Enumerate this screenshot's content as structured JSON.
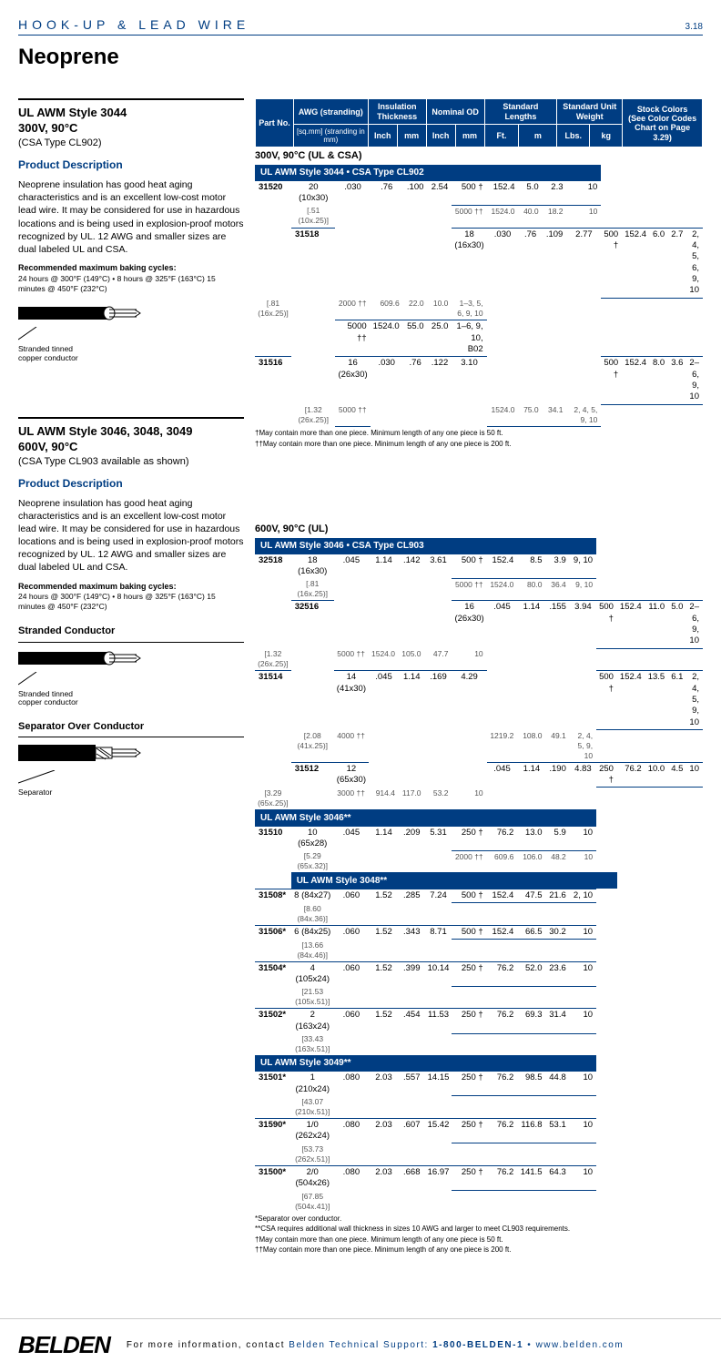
{
  "header": {
    "category": "HOOK-UP & LEAD WIRE",
    "page": "3.18"
  },
  "title": "Neoprene",
  "sections": [
    {
      "style_title": "UL AWM Style 3044",
      "style_sub1": "300V, 90°C",
      "style_sub2": "(CSA Type CL902)",
      "pd_head": "Product Description",
      "pd_text": "Neoprene insulation has good heat aging characteristics and is an excellent low-cost motor lead wire. It may be considered for use in hazardous locations and is being used in explosion-proof motors recognized by UL. 12 AWG and smaller sizes are dual labeled UL and CSA.",
      "baking_h": "Recommended maximum baking cycles:",
      "baking_t": "24 hours @ 300°F (149°C) • 8 hours @ 325°F (163°C) 15 minutes @ 450°F (232°C)",
      "fig_label": "Stranded tinned\ncopper conductor"
    },
    {
      "style_title": "UL AWM Style 3046, 3048, 3049",
      "style_sub1": "600V, 90°C",
      "style_sub2": "(CSA Type CL903 available as shown)",
      "pd_head": "Product Description",
      "pd_text": "Neoprene insulation has good heat aging characteristics and is an excellent low-cost motor lead wire. It may be considered for use in hazardous locations and is being used in explosion-proof motors recognized by UL. 12 AWG and smaller sizes are dual labeled UL and CSA.",
      "baking_h": "Recommended maximum baking cycles:",
      "baking_t": "24 hours @ 300°F (149°C) • 8 hours @ 325°F (163°C) 15 minutes @ 450°F (232°C)",
      "fig1_h": "Stranded Conductor",
      "fig1_label": "Stranded tinned\ncopper conductor",
      "fig2_h": "Separator Over Conductor",
      "fig2_label": "Separator"
    }
  ],
  "table_header": {
    "part": "Part No.",
    "awg": "AWG (stranding)",
    "awg_sub": "[sq.mm] (stranding in mm)",
    "ins": "Insulation Thickness",
    "nom": "Nominal OD",
    "stdlen": "Standard Lengths",
    "stdwt": "Standard Unit Weight",
    "stock": "Stock Colors",
    "stock_sub": "(See Color Codes Chart on Page 3.29)",
    "inch": "Inch",
    "mm": "mm",
    "ft": "Ft.",
    "m": "m",
    "lbs": "Lbs.",
    "kg": "kg"
  },
  "tables": {
    "t1_title": "300V, 90°C (UL & CSA)",
    "t1_section": "UL AWM Style 3044 • CSA Type CL902",
    "t1_rows": [
      {
        "part": "31520",
        "awg": "20 (10x30)",
        "awgs": "[.51 (10x.25)]",
        "in": ".030",
        "mm": ".76",
        "oin": ".100",
        "omm": "2.54",
        "spans": [
          [
            "500 †",
            "152.4",
            "5.0",
            "2.3",
            "10"
          ],
          [
            "5000 ††",
            "1524.0",
            "40.0",
            "18.2",
            "10"
          ]
        ]
      },
      {
        "part": "31518",
        "awg": "18 (16x30)",
        "awgs": "[.81 (16x.25)]",
        "in": ".030",
        "mm": ".76",
        "oin": ".109",
        "omm": "2.77",
        "spans": [
          [
            "500 †",
            "152.4",
            "6.0",
            "2.7",
            "2, 4, 5, 6, 9, 10"
          ],
          [
            "2000 ††",
            "609.6",
            "22.0",
            "10.0",
            "1–3, 5, 6, 9, 10"
          ],
          [
            "5000 ††",
            "1524.0",
            "55.0",
            "25.0",
            "1–6, 9, 10, B02"
          ]
        ]
      },
      {
        "part": "31516",
        "awg": "16 (26x30)",
        "awgs": "[1.32 (26x.25)]",
        "in": ".030",
        "mm": ".76",
        "oin": ".122",
        "omm": "3.10",
        "spans": [
          [
            "500 †",
            "152.4",
            "8.0",
            "3.6",
            "2–6, 9, 10"
          ],
          [
            "5000 ††",
            "1524.0",
            "75.0",
            "34.1",
            "2, 4, 5, 9, 10"
          ]
        ]
      }
    ],
    "t1_foot1": "†May contain more than one piece. Minimum length of any one piece is 50 ft.",
    "t1_foot2": "††May contain more than one piece. Minimum length of any one piece is 200 ft.",
    "t2_title": "600V, 90°C (UL)",
    "t2_s1": "UL AWM Style 3046 • CSA Type CL903",
    "t2_r1": [
      {
        "part": "32518",
        "awg": "18 (16x30)",
        "awgs": "[.81 (16x.25)]",
        "in": ".045",
        "mm": "1.14",
        "oin": ".142",
        "omm": "3.61",
        "spans": [
          [
            "500 †",
            "152.4",
            "8.5",
            "3.9",
            "9, 10"
          ],
          [
            "5000 ††",
            "1524.0",
            "80.0",
            "36.4",
            "9, 10"
          ]
        ]
      },
      {
        "part": "32516",
        "awg": "16 (26x30)",
        "awgs": "[1.32 (26x.25)]",
        "in": ".045",
        "mm": "1.14",
        "oin": ".155",
        "omm": "3.94",
        "spans": [
          [
            "500 †",
            "152.4",
            "11.0",
            "5.0",
            "2–6, 9, 10"
          ],
          [
            "5000 ††",
            "1524.0",
            "105.0",
            "47.7",
            "10"
          ]
        ]
      },
      {
        "part": "31514",
        "awg": "14 (41x30)",
        "awgs": "[2.08 (41x.25)]",
        "in": ".045",
        "mm": "1.14",
        "oin": ".169",
        "omm": "4.29",
        "spans": [
          [
            "500 †",
            "152.4",
            "13.5",
            "6.1",
            "2, 4, 5, 9, 10"
          ],
          [
            "4000 ††",
            "1219.2",
            "108.0",
            "49.1",
            "2, 4, 5, 9, 10"
          ]
        ]
      },
      {
        "part": "31512",
        "awg": "12 (65x30)",
        "awgs": "[3.29 (65x.25)]",
        "in": ".045",
        "mm": "1.14",
        "oin": ".190",
        "omm": "4.83",
        "spans": [
          [
            "250 †",
            "76.2",
            "10.0",
            "4.5",
            "10"
          ],
          [
            "3000 ††",
            "914.4",
            "117.0",
            "53.2",
            "10"
          ]
        ]
      }
    ],
    "t2_s2": "UL AWM Style 3046**",
    "t2_r2": [
      {
        "part": "31510",
        "awg": "10 (65x28)",
        "awgs": "[5.29 (65x.32)]",
        "in": ".045",
        "mm": "1.14",
        "oin": ".209",
        "omm": "5.31",
        "spans": [
          [
            "250 †",
            "76.2",
            "13.0",
            "5.9",
            "10"
          ],
          [
            "2000 ††",
            "609.6",
            "106.0",
            "48.2",
            "10"
          ]
        ]
      }
    ],
    "t2_s3": "UL AWM Style 3048**",
    "t2_r3": [
      {
        "part": "31508*",
        "awg": "8 (84x27)",
        "awgs": "[8.60 (84x.36)]",
        "in": ".060",
        "mm": "1.52",
        "oin": ".285",
        "omm": "7.24",
        "spans": [
          [
            "500 †",
            "152.4",
            "47.5",
            "21.6",
            "2, 10"
          ]
        ]
      },
      {
        "part": "31506*",
        "awg": "6 (84x25)",
        "awgs": "[13.66 (84x.46)]",
        "in": ".060",
        "mm": "1.52",
        "oin": ".343",
        "omm": "8.71",
        "spans": [
          [
            "500 †",
            "152.4",
            "66.5",
            "30.2",
            "10"
          ]
        ]
      },
      {
        "part": "31504*",
        "awg": "4 (105x24)",
        "awgs": "[21.53 (105x.51)]",
        "in": ".060",
        "mm": "1.52",
        "oin": ".399",
        "omm": "10.14",
        "spans": [
          [
            "250 †",
            "76.2",
            "52.0",
            "23.6",
            "10"
          ]
        ]
      },
      {
        "part": "31502*",
        "awg": "2 (163x24)",
        "awgs": "[33.43 (163x.51)]",
        "in": ".060",
        "mm": "1.52",
        "oin": ".454",
        "omm": "11.53",
        "spans": [
          [
            "250 †",
            "76.2",
            "69.3",
            "31.4",
            "10"
          ]
        ]
      }
    ],
    "t2_s4": "UL AWM Style 3049**",
    "t2_r4": [
      {
        "part": "31501*",
        "awg": "1 (210x24)",
        "awgs": "[43.07 (210x.51)]",
        "in": ".080",
        "mm": "2.03",
        "oin": ".557",
        "omm": "14.15",
        "spans": [
          [
            "250 †",
            "76.2",
            "98.5",
            "44.8",
            "10"
          ]
        ]
      },
      {
        "part": "31590*",
        "awg": "1/0 (262x24)",
        "awgs": "[53.73 (262x.51)]",
        "in": ".080",
        "mm": "2.03",
        "oin": ".607",
        "omm": "15.42",
        "spans": [
          [
            "250 †",
            "76.2",
            "116.8",
            "53.1",
            "10"
          ]
        ]
      },
      {
        "part": "31500*",
        "awg": "2/0 (504x26)",
        "awgs": "[67.85 (504x.41)]",
        "in": ".080",
        "mm": "2.03",
        "oin": ".668",
        "omm": "16.97",
        "spans": [
          [
            "250 †",
            "76.2",
            "141.5",
            "64.3",
            "10"
          ]
        ]
      }
    ],
    "t2_foot1": "*Separator over conductor.",
    "t2_foot2": "**CSA requires additional wall thickness in sizes 10 AWG and larger to meet CL903 requirements.",
    "t2_foot3": "†May contain more than one piece. Minimum length of any one piece is 50 ft.",
    "t2_foot4": "††May contain more than one piece. Minimum length of any one piece is 200 ft."
  },
  "footer": {
    "logo": "BELDEN",
    "text1": "For more information, contact ",
    "text2": "Belden Technical Support: ",
    "phone": "1-800-BELDEN-1",
    "dot": " • ",
    "url": "www.belden.com"
  },
  "colors": {
    "brand": "#003d82"
  }
}
